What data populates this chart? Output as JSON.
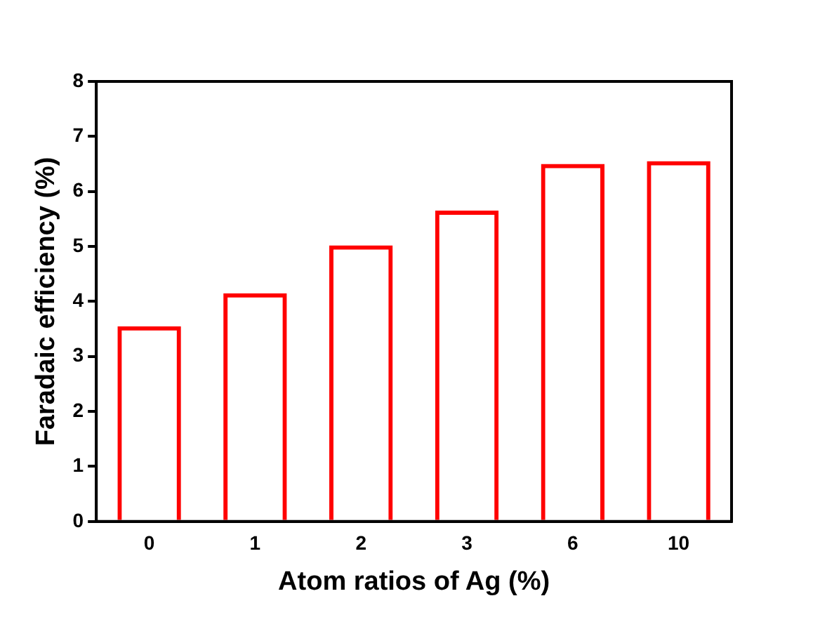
{
  "chart_data": {
    "type": "bar",
    "xlabel": "Atom ratios of Ag (%)",
    "ylabel": "Faradaic efficiency (%)",
    "categories": [
      "0",
      "1",
      "2",
      "3",
      "6",
      "10"
    ],
    "values": [
      3.55,
      4.15,
      5.02,
      5.65,
      6.5,
      6.55
    ],
    "color": "#ff0000",
    "ylim": [
      0,
      8
    ],
    "yticks": [
      0,
      1,
      2,
      3,
      4,
      5,
      6,
      7,
      8
    ],
    "grid": false
  }
}
